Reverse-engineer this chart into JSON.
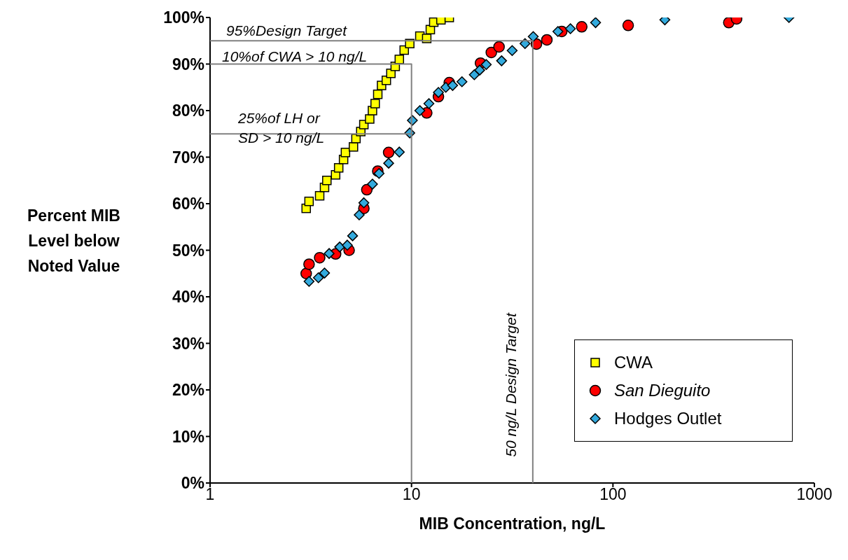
{
  "chart_data": {
    "type": "scatter",
    "xlabel": "MIB Concentration, ng/L",
    "ylabel": "Percent MIB Level below Noted Value",
    "log": "x",
    "xlim": [
      1,
      1000
    ],
    "xticks": [
      1,
      10,
      100,
      1000
    ],
    "ylim": [
      0,
      100
    ],
    "yticks": [
      {
        "value": 0,
        "label": "0%"
      },
      {
        "value": 10,
        "label": "10%"
      },
      {
        "value": 20,
        "label": "20%"
      },
      {
        "value": 30,
        "label": "30%"
      },
      {
        "value": 40,
        "label": "40%"
      },
      {
        "value": 50,
        "label": "50%"
      },
      {
        "value": 60,
        "label": "60%"
      },
      {
        "value": 70,
        "label": "70%"
      },
      {
        "value": 80,
        "label": "80%"
      },
      {
        "value": 90,
        "label": "90%"
      },
      {
        "value": 100,
        "label": "100%"
      }
    ],
    "legend": "bottom right",
    "series": [
      {
        "name": "CWA",
        "color": "#ffff00",
        "marker": "square",
        "x": [
          3.0,
          3.1,
          3.5,
          3.7,
          3.8,
          4.2,
          4.35,
          4.6,
          4.7,
          5.15,
          5.3,
          5.6,
          5.8,
          6.2,
          6.4,
          6.6,
          6.8,
          7.1,
          7.5,
          7.9,
          8.3,
          8.7,
          9.2,
          9.8,
          11,
          11.9,
          12.4,
          12.9,
          14,
          15.4
        ],
        "values": [
          59,
          60.5,
          61.7,
          63.5,
          65,
          66.2,
          67.7,
          69.5,
          71,
          72.2,
          74,
          75.5,
          77,
          78.2,
          80,
          81.5,
          83.5,
          85.4,
          86.5,
          88,
          89.5,
          91,
          93,
          94.4,
          96,
          95.5,
          97.4,
          99,
          99.5,
          100
        ]
      },
      {
        "name": "San Dieguito",
        "color": "#ff0000",
        "marker": "circle",
        "x": [
          3.0,
          3.1,
          3.5,
          4.2,
          4.9,
          5.8,
          6.0,
          6.8,
          7.7,
          11.9,
          13.6,
          15.4,
          22,
          24.9,
          27.2,
          41.7,
          47,
          55.7,
          70,
          119,
          376,
          411
        ],
        "values": [
          45,
          47,
          48.4,
          49.2,
          50,
          59,
          63,
          67,
          71,
          79.5,
          83,
          86,
          90.2,
          92.5,
          93.7,
          94.3,
          95.2,
          97,
          98,
          98.3,
          98.9,
          99.7
        ]
      },
      {
        "name": "Hodges Outlet",
        "color": "#33aadd",
        "marker": "diamond",
        "x": [
          3.1,
          3.45,
          3.7,
          3.9,
          4.4,
          4.8,
          5.1,
          5.5,
          5.8,
          6.4,
          6.9,
          7.7,
          8.7,
          9.8,
          10.1,
          11,
          12.2,
          13.6,
          14.8,
          16,
          17.8,
          20.5,
          21.8,
          23.5,
          28,
          31.6,
          36.6,
          40.2,
          53.3,
          61.5,
          82,
          181,
          748
        ],
        "values": [
          43.3,
          44.1,
          45.1,
          49.3,
          50.7,
          51.1,
          53.1,
          57.6,
          60.2,
          64.2,
          66.5,
          68.7,
          71.1,
          75.2,
          77.9,
          80,
          81.5,
          83.9,
          85,
          85.4,
          86.2,
          87.7,
          88.7,
          89.9,
          90.7,
          92.9,
          94.4,
          95.9,
          97,
          97.6,
          98.9,
          99.5,
          100
        ]
      },
      {
        "type": "line",
        "color": "#808080",
        "x": [
          1,
          40,
          40
        ],
        "values": [
          95,
          95,
          0
        ]
      },
      {
        "type": "line",
        "color": "#808080",
        "x": [
          1,
          10,
          10
        ],
        "values": [
          90,
          90,
          0
        ]
      },
      {
        "type": "line",
        "color": "#808080",
        "x": [
          1,
          10
        ],
        "values": [
          75,
          75
        ]
      }
    ],
    "annotations": [
      "95%Design Target",
      "10%of CWA > 10 ng/L",
      "25%of LH or\nSD > 10 ng/L",
      "50 ng/L Design Target"
    ]
  }
}
